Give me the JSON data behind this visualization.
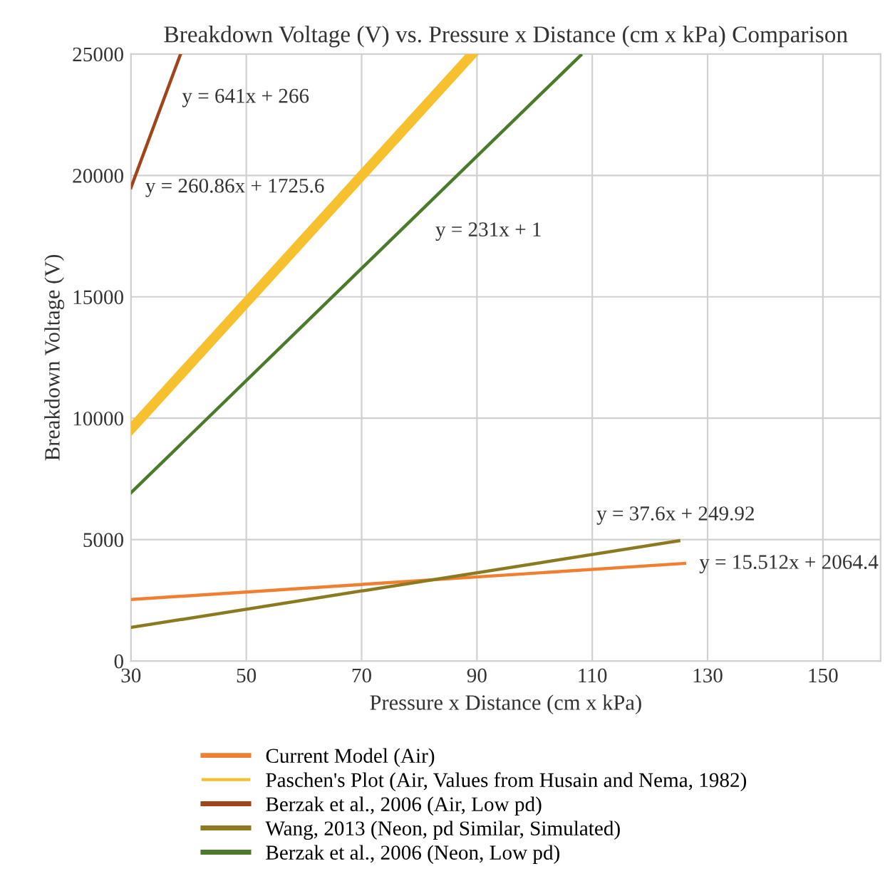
{
  "chart_data": {
    "type": "line",
    "title": "Breakdown Voltage (V) vs. Pressure x Distance (cm x kPa) Comparison",
    "xlabel": "Pressure x Distance (cm x kPa)",
    "ylabel": "Breakdown Voltage (V)",
    "xlim": [
      30,
      160
    ],
    "xticks": [
      30,
      50,
      70,
      90,
      110,
      130,
      150
    ],
    "ylim": [
      0,
      25000
    ],
    "yticks": [
      0,
      5000,
      10000,
      15000,
      20000,
      25000
    ],
    "grid": true,
    "legend": "bottom",
    "marker": "none",
    "line_style": "solid",
    "series": [
      {
        "name": "Current Model (Air)",
        "color": "#f07f32",
        "x": [
          30,
          126
        ],
        "values": [
          2530,
          4020
        ]
      },
      {
        "name": "Paschen's Plot (Air, Values from Husain and Nema, 1982)",
        "color": "#f6c02e",
        "x": [
          30,
          89.2
        ],
        "values": [
          9550,
          25000
        ]
      },
      {
        "name": "Berzak et al., 2006 (Air, Low pd)",
        "color": "#a0441a",
        "x": [
          30,
          38.6
        ],
        "values": [
          19500,
          25000
        ]
      },
      {
        "name": "Wang, 2013 (Neon, pd Similar, Simulated)",
        "color": "#8b7a20",
        "x": [
          30,
          125
        ],
        "values": [
          1380,
          4950
        ]
      },
      {
        "name": "Berzak et al., 2006 (Neon, Low pd)",
        "color": "#4b7a2a",
        "x": [
          30,
          108
        ],
        "values": [
          6930,
          24950
        ]
      }
    ],
    "annotations": [
      "y = 641x + 266",
      "y = 260.86x + 1725.6",
      "y = 231x + 1",
      "y = 37.6x + 249.92",
      "y = 15.512x + 2064.4"
    ]
  }
}
